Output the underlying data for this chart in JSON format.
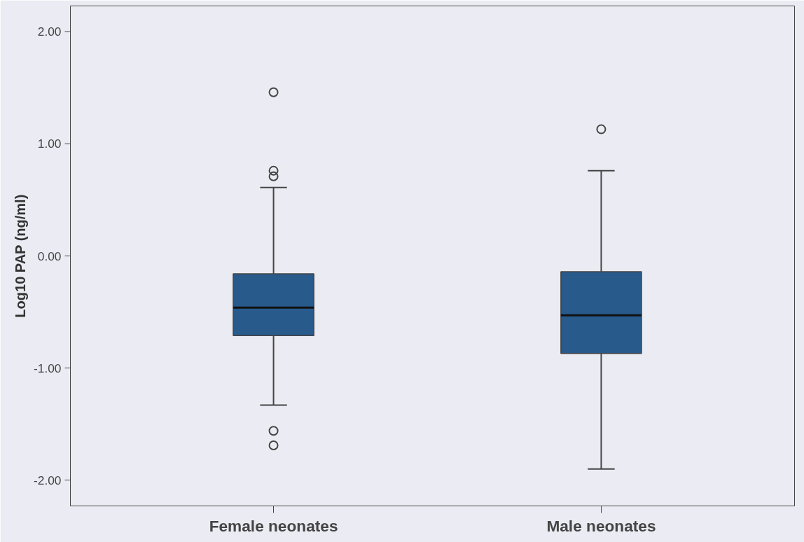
{
  "chart_data": {
    "type": "box",
    "ylabel": "Log10 PAP (ng/ml)",
    "categories": [
      "Female neonates",
      "Male neonates"
    ],
    "series": [
      {
        "color": "#285a8c",
        "boxes": [
          {
            "low": -1.33,
            "q1": -0.71,
            "median": -0.46,
            "q3": -0.16,
            "high": 0.61,
            "outliers": [
              1.46,
              0.76,
              0.71,
              -1.56,
              -1.69
            ]
          },
          {
            "low": -1.9,
            "q1": -0.87,
            "median": -0.53,
            "q3": -0.14,
            "high": 0.76,
            "outliers": [
              1.13
            ]
          }
        ]
      }
    ],
    "ylim": [
      -2.23,
      2.23
    ],
    "yticks": [
      {
        "value": -2,
        "label": "-2.00"
      },
      {
        "value": -1,
        "label": "-1.00"
      },
      {
        "value": 0,
        "label": "0.00"
      },
      {
        "value": 1,
        "label": "1.00"
      },
      {
        "value": 2,
        "label": "2.00"
      }
    ],
    "grid": false,
    "marker": "circle"
  }
}
